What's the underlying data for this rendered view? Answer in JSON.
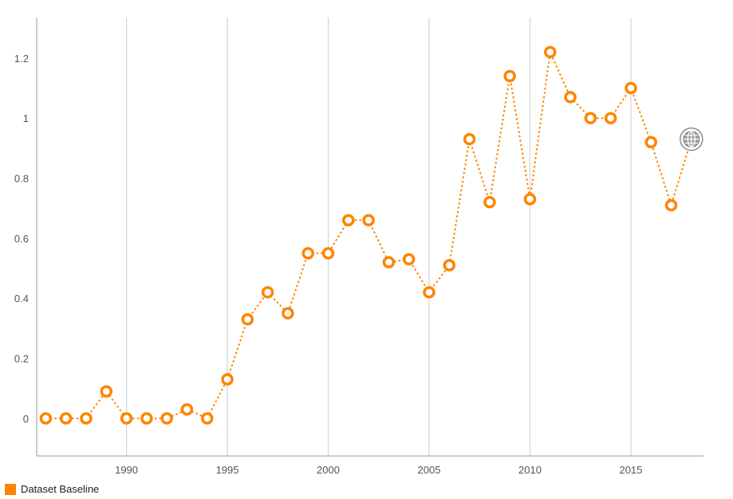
{
  "chart_data": {
    "type": "line",
    "x": [
      1986,
      1987,
      1988,
      1989,
      1990,
      1991,
      1992,
      1993,
      1994,
      1995,
      1996,
      1997,
      1998,
      1999,
      2000,
      2001,
      2002,
      2003,
      2004,
      2005,
      2006,
      2007,
      2008,
      2009,
      2010,
      2011,
      2012,
      2013,
      2014,
      2015,
      2016,
      2017,
      2018
    ],
    "series": [
      {
        "name": "Dataset Baseline",
        "values": [
          0,
          0,
          0,
          0.09,
          0,
          0,
          0,
          0.03,
          0,
          0.13,
          0.33,
          0.42,
          0.35,
          0.55,
          0.55,
          0.66,
          0.66,
          0.52,
          0.53,
          0.42,
          0.51,
          0.93,
          0.72,
          1.14,
          0.73,
          1.22,
          1.07,
          1.0,
          1.0,
          1.1,
          0.92,
          0.71,
          0.93
        ],
        "color": "#ff8400"
      }
    ],
    "x_ticks": [
      "1990",
      "1995",
      "2000",
      "2005",
      "2010",
      "2015"
    ],
    "x_tick_values": [
      1990,
      1995,
      2000,
      2005,
      2010,
      2015
    ],
    "y_ticks": [
      "0",
      "0.2",
      "0.4",
      "0.6",
      "0.8",
      "1",
      "1.2"
    ],
    "y_tick_values": [
      0,
      0.2,
      0.4,
      0.6,
      0.8,
      1,
      1.2
    ],
    "xlim": [
      1985.55,
      2018.6
    ],
    "ylim": [
      -0.125,
      1.335
    ],
    "grid": "vertical lines at labeled years",
    "legend_position": "bottom-left",
    "line_style": "dotted",
    "last_point_icon": "globe-icon"
  },
  "legend": {
    "label": "Dataset Baseline",
    "color": "#ff8400"
  }
}
